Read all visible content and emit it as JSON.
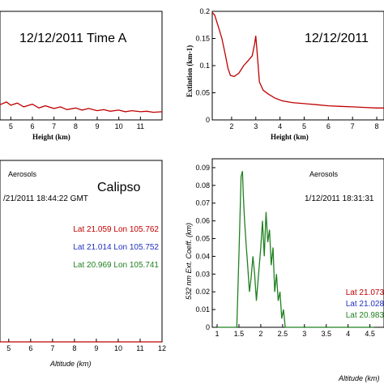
{
  "chart_data": [
    {
      "panel": "top-left",
      "type": "line",
      "annotation": "12/12/2011 Time A",
      "xlabel": "Height (km)",
      "xlim": [
        4.5,
        12
      ],
      "xticks": [
        "5",
        "6",
        "7",
        "8",
        "9",
        "10",
        "11"
      ],
      "series": [
        {
          "color": "#c00000",
          "x": [
            4.5,
            4.8,
            5.0,
            5.3,
            5.6,
            6.0,
            6.3,
            6.6,
            7.0,
            7.3,
            7.6,
            8.0,
            8.3,
            8.6,
            9.0,
            9.3,
            9.6,
            10.0,
            10.3,
            10.6,
            11.0,
            11.3,
            11.6,
            12.0
          ],
          "y": [
            0.028,
            0.033,
            0.027,
            0.031,
            0.024,
            0.029,
            0.022,
            0.026,
            0.021,
            0.024,
            0.019,
            0.022,
            0.018,
            0.021,
            0.017,
            0.019,
            0.016,
            0.018,
            0.015,
            0.017,
            0.015,
            0.016,
            0.014,
            0.015
          ]
        }
      ],
      "ylim": [
        0,
        0.2
      ]
    },
    {
      "panel": "top-right",
      "type": "line",
      "annotation": "12/12/2011",
      "xlabel": "Height (km)",
      "ylabel": "Extintion (km-1)",
      "xlim": [
        1.2,
        8.3
      ],
      "ylim": [
        0,
        0.2
      ],
      "xticks": [
        "2",
        "3",
        "4",
        "5",
        "6",
        "7",
        "8"
      ],
      "yticks": [
        "0",
        "0.05",
        "0.1",
        "0.15",
        "0.2"
      ],
      "series": [
        {
          "color": "#c00000",
          "x": [
            1.2,
            1.3,
            1.45,
            1.6,
            1.75,
            1.85,
            1.95,
            2.1,
            2.3,
            2.5,
            2.7,
            2.85,
            2.95,
            3.0,
            3.05,
            3.15,
            3.3,
            3.5,
            3.8,
            4.1,
            4.5,
            5.0,
            5.5,
            6.0,
            6.5,
            7.0,
            7.5,
            8.0,
            8.3
          ],
          "y": [
            0.198,
            0.193,
            0.172,
            0.15,
            0.118,
            0.095,
            0.082,
            0.08,
            0.086,
            0.1,
            0.11,
            0.118,
            0.14,
            0.155,
            0.128,
            0.07,
            0.055,
            0.048,
            0.04,
            0.035,
            0.032,
            0.03,
            0.028,
            0.026,
            0.025,
            0.024,
            0.023,
            0.022,
            0.022
          ]
        }
      ]
    },
    {
      "panel": "bottom-left",
      "type": "line",
      "annotation": "Calipso",
      "aerosols": "Aerosols",
      "datetime": "/21/2011 18:44:22 GMT",
      "xlabel": "Altitude (km)",
      "xlim": [
        4.6,
        12
      ],
      "xticks": [
        "5",
        "6",
        "7",
        "8",
        "9",
        "10",
        "11",
        "12"
      ],
      "legend": [
        {
          "text": "Lat 21.059 Lon 105.762",
          "color": "#c00000"
        },
        {
          "text": "Lat 21.014 Lon 105.752",
          "color": "#2030c0"
        },
        {
          "text": "Lat 20.969 Lon 105.741",
          "color": "#208020"
        }
      ],
      "series": [
        {
          "color": "#c00000",
          "x": [
            4.6,
            12
          ],
          "y": [
            0,
            0
          ]
        }
      ],
      "ylim": [
        0,
        0.09
      ]
    },
    {
      "panel": "bottom-right",
      "type": "line",
      "aerosols": "Aerosols",
      "datetime": "1/12/2011 18:31:31",
      "xlabel": "Altitude (km)",
      "ylabel": "532 nm Ext. Coeff. (km)",
      "xlim": [
        0.9,
        8.5
      ],
      "ylim": [
        0,
        0.095
      ],
      "xticks": [
        "1",
        "1.5",
        "2",
        "2.5",
        "3",
        "3.5",
        "4",
        "4.5"
      ],
      "yticks": [
        "0",
        "0.01",
        "0.02",
        "0.03",
        "0.04",
        "0.05",
        "0.06",
        "0.07",
        "0.08",
        "0.09"
      ],
      "legend": [
        {
          "text": "Lat 21.073",
          "color": "#c00000"
        },
        {
          "text": "Lat 21.028",
          "color": "#2030c0"
        },
        {
          "text": "Lat 20.983",
          "color": "#208020"
        }
      ],
      "series": [
        {
          "color": "#208020",
          "x": [
            1.0,
            1.4,
            1.45,
            1.5,
            1.55,
            1.58,
            1.6,
            1.63,
            1.67,
            1.7,
            1.74,
            1.78,
            1.82,
            1.86,
            1.9,
            1.95,
            2.0,
            2.04,
            2.08,
            2.12,
            2.16,
            2.2,
            2.24,
            2.28,
            2.32,
            2.36,
            2.4,
            2.44,
            2.48,
            2.52,
            2.56,
            2.6,
            4.0,
            4.6
          ],
          "y": [
            0,
            0,
            0,
            0.04,
            0.085,
            0.088,
            0.075,
            0.06,
            0.045,
            0.035,
            0.02,
            0.028,
            0.04,
            0.03,
            0.015,
            0.03,
            0.045,
            0.06,
            0.04,
            0.065,
            0.048,
            0.055,
            0.035,
            0.045,
            0.02,
            0.03,
            0.015,
            0.02,
            0.005,
            0.01,
            0,
            0,
            0,
            0
          ]
        }
      ]
    }
  ]
}
